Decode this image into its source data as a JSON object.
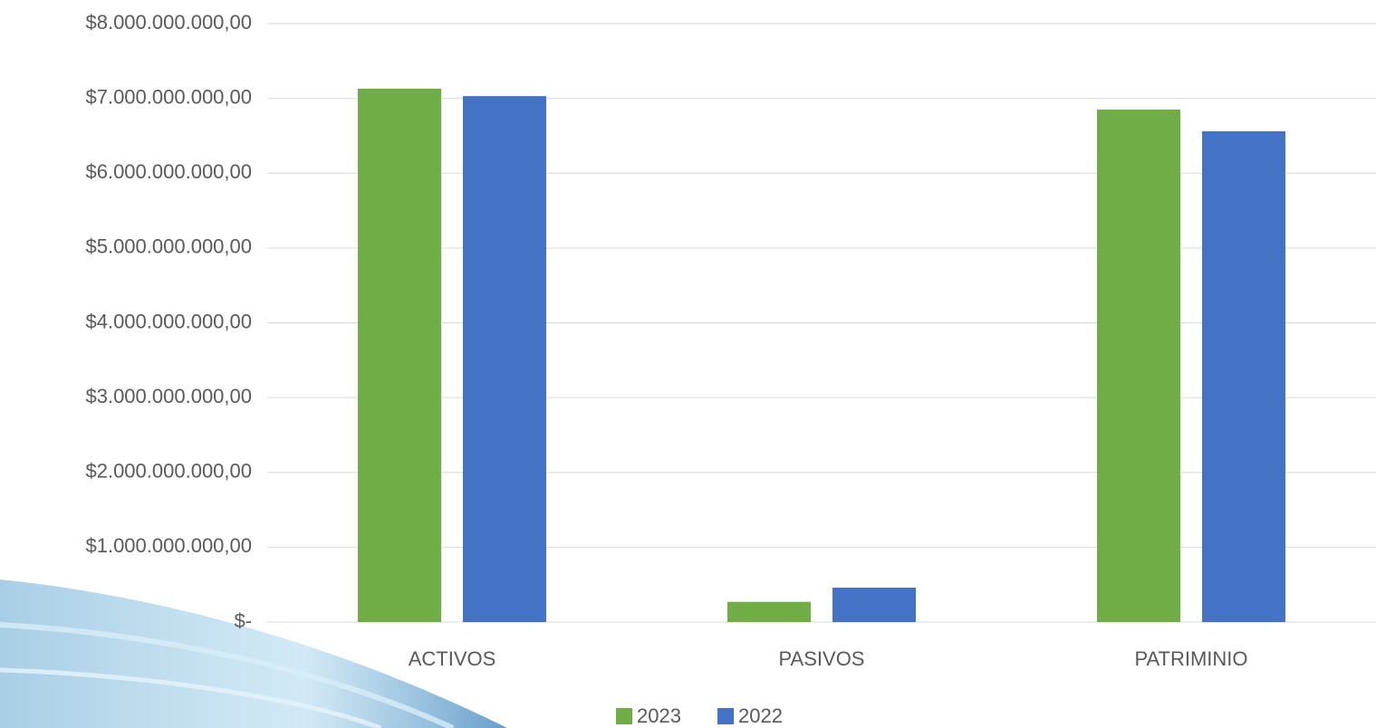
{
  "chart_data": {
    "type": "bar",
    "categories": [
      "ACTIVOS",
      "PASIVOS",
      "PATRIMINIO"
    ],
    "series": [
      {
        "name": "2023",
        "color": "#70ad47",
        "values": [
          7130000000,
          270000000,
          6850000000
        ]
      },
      {
        "name": "2022",
        "color": "#4472c4",
        "values": [
          7030000000,
          460000000,
          6560000000
        ]
      }
    ],
    "ylim": [
      0,
      8000000000
    ],
    "yticks": [
      {
        "value": 0,
        "label": "$-"
      },
      {
        "value": 1000000000,
        "label": "$1.000.000.000,00"
      },
      {
        "value": 2000000000,
        "label": "$2.000.000.000,00"
      },
      {
        "value": 3000000000,
        "label": "$3.000.000.000,00"
      },
      {
        "value": 4000000000,
        "label": "$4.000.000.000,00"
      },
      {
        "value": 5000000000,
        "label": "$5.000.000.000,00"
      },
      {
        "value": 6000000000,
        "label": "$6.000.000.000,00"
      },
      {
        "value": 7000000000,
        "label": "$7.000.000.000,00"
      },
      {
        "value": 8000000000,
        "label": "$8.000.000.000,00"
      }
    ],
    "grid": true,
    "legend": "bottom"
  }
}
